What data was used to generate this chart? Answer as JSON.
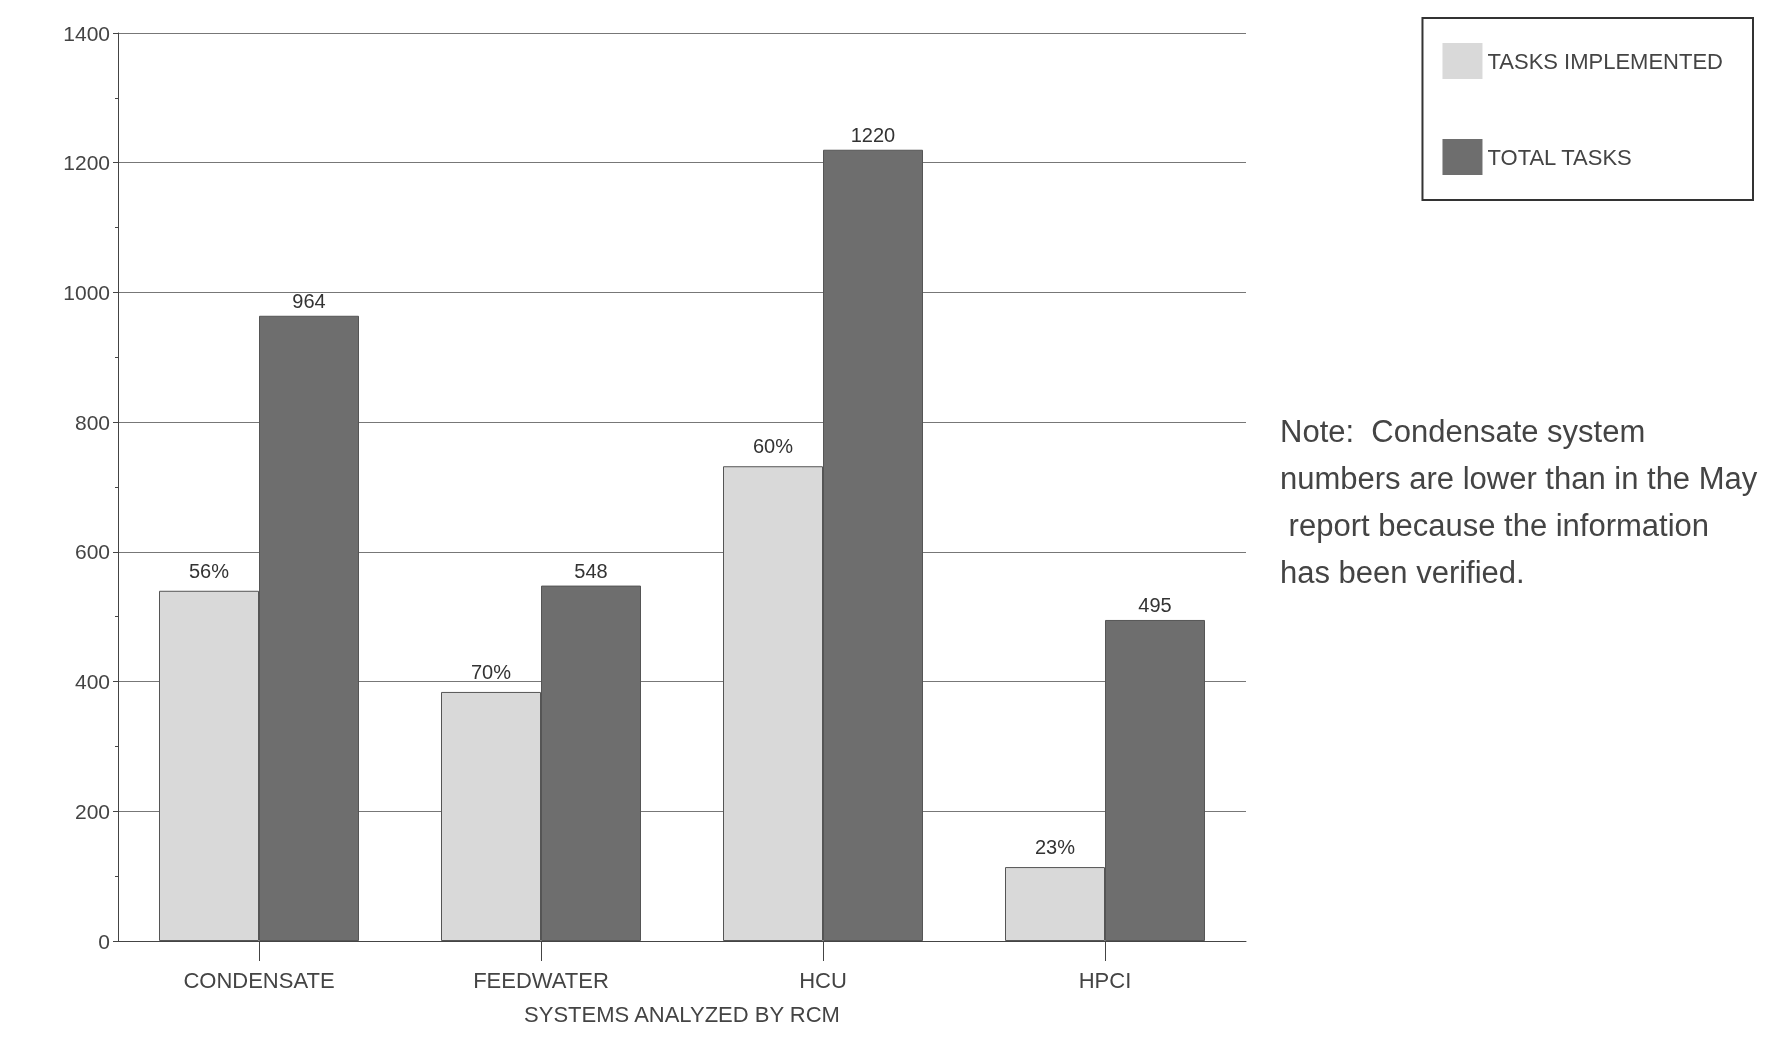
{
  "chart_data": {
    "type": "bar",
    "xlabel": "SYSTEMS ANALYZED BY RCM",
    "categories": [
      "CONDENSATE",
      "FEEDWATER",
      "HCU",
      "HPCI"
    ],
    "series": [
      {
        "name": "TASKS IMPLEMENTED",
        "color": "#d9d9d9",
        "values": [
          540,
          384,
          732,
          114
        ]
      },
      {
        "name": "TOTAL TASKS",
        "color": "#6e6e6e",
        "values": [
          964,
          548,
          1220,
          495
        ],
        "value_labels": [
          "964",
          "548",
          "1220",
          "495"
        ]
      }
    ],
    "ylim": [
      0,
      1400
    ],
    "yticks": [
      0,
      200,
      400,
      600,
      800,
      1000,
      1200,
      1400
    ],
    "grid": "y",
    "legend": "top right",
    "annotations": [
      {
        "text": "56%",
        "x": "CONDENSATE",
        "y": 540
      },
      {
        "text": "70%",
        "x": "FEEDWATER",
        "y": 384
      },
      {
        "text": "60%",
        "x": "HCU",
        "y": 732
      },
      {
        "text": "23%",
        "x": "HPCI",
        "y": 114
      },
      "Note:  Condensate system numbers are lower than in the May report because the information has been verified."
    ]
  }
}
